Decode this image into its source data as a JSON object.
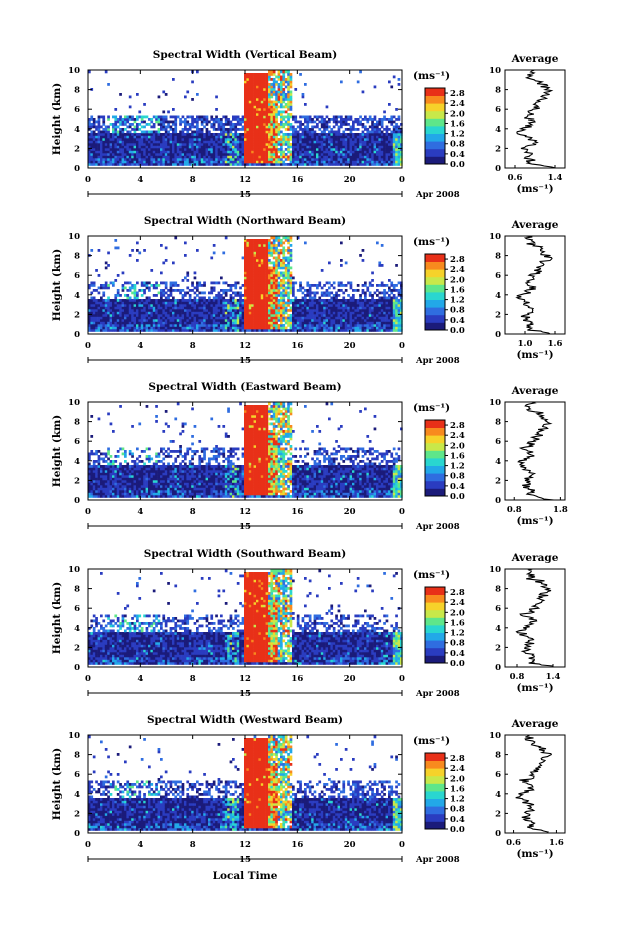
{
  "panels": [
    {
      "title": "Spectral Width (Vertical Beam)",
      "profile_ticks": [
        "0.6",
        "1.4"
      ],
      "profile_range": [
        0.4,
        1.6
      ]
    },
    {
      "title": "Spectral Width (Northward Beam)",
      "profile_ticks": [
        "1.0",
        "1.6"
      ],
      "profile_range": [
        0.6,
        1.8
      ]
    },
    {
      "title": "Spectral Width (Eastward Beam)",
      "profile_ticks": [
        "0.8",
        "1.8"
      ],
      "profile_range": [
        0.6,
        1.9
      ]
    },
    {
      "title": "Spectral Width (Southward Beam)",
      "profile_ticks": [
        "0.8",
        "1.4"
      ],
      "profile_range": [
        0.6,
        1.6
      ]
    },
    {
      "title": "Spectral Width (Westward Beam)",
      "profile_ticks": [
        "0.6",
        "1.6"
      ],
      "profile_range": [
        0.4,
        1.8
      ]
    }
  ],
  "axes": {
    "ylabel": "Height (km)",
    "y_ticks": [
      "0",
      "2",
      "4",
      "6",
      "8",
      "10"
    ],
    "x_ticks": [
      "0",
      "4",
      "8",
      "12",
      "16",
      "20",
      "0"
    ],
    "date_day": "15",
    "date_label": "Apr 2008",
    "xlabel": "Local Time"
  },
  "colorbar": {
    "unit": "(ms⁻¹)",
    "ticks": [
      "2.8",
      "2.4",
      "2.0",
      "1.6",
      "1.2",
      "0.8",
      "0.4",
      "0.0"
    ]
  },
  "profile": {
    "title": "Average",
    "unit": "(ms⁻¹)"
  },
  "chart_data": {
    "type": "heatmap",
    "x_range_hours": [
      0,
      24
    ],
    "y_range_km": [
      0,
      10
    ],
    "color_range_ms": [
      0.0,
      3.0
    ],
    "colormap": [
      "#1b1b7a",
      "#2a3cc0",
      "#2f6de0",
      "#22a8e8",
      "#29d6d0",
      "#5ee68a",
      "#c8e84a",
      "#f6d22a",
      "#f88a1e",
      "#e83018"
    ],
    "note_features": [
      {
        "time_hours": [
          12.0,
          15.5
        ],
        "height_km": [
          0.5,
          9.8
        ],
        "spectral_width_ms": 2.9
      },
      {
        "time_hours": [
          0,
          24
        ],
        "height_km": [
          0.3,
          3.5
        ],
        "spectral_width_ms": 0.4
      }
    ]
  }
}
